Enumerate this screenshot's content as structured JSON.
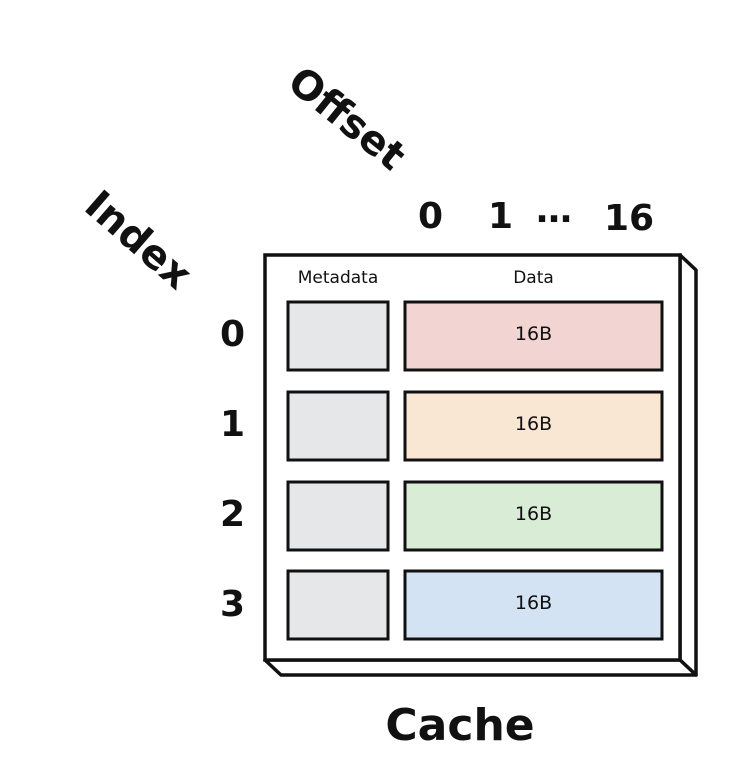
{
  "diagram": {
    "offset_label": "Offset",
    "index_label": "Index",
    "offset_ticks": [
      "0",
      "1",
      "…",
      "16"
    ],
    "index_ticks": [
      "0",
      "1",
      "2",
      "3"
    ],
    "metadata_header": "Metadata",
    "data_header": "Data",
    "caption": "Cache",
    "rows": [
      {
        "index": "0",
        "data_label": "16B",
        "data_color": "#f2d4d3"
      },
      {
        "index": "1",
        "data_label": "16B",
        "data_color": "#f9e6d3"
      },
      {
        "index": "2",
        "data_label": "16B",
        "data_color": "#d9ecd5"
      },
      {
        "index": "3",
        "data_label": "16B",
        "data_color": "#d3e3f3"
      }
    ],
    "metadata_color": "#e6e7e9",
    "outline_color": "#111111"
  }
}
